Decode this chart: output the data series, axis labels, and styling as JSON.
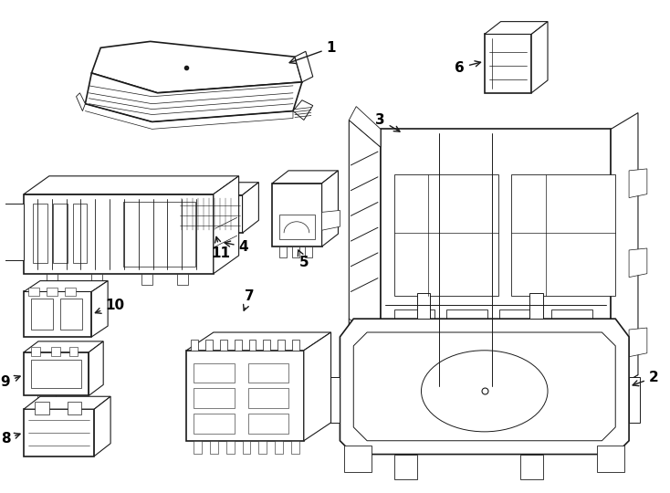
{
  "background_color": "#ffffff",
  "line_color": "#1a1a1a",
  "line_width": 0.8,
  "fig_width": 7.34,
  "fig_height": 5.4,
  "dpi": 100,
  "label_fontsize": 11,
  "label_fontweight": "bold"
}
